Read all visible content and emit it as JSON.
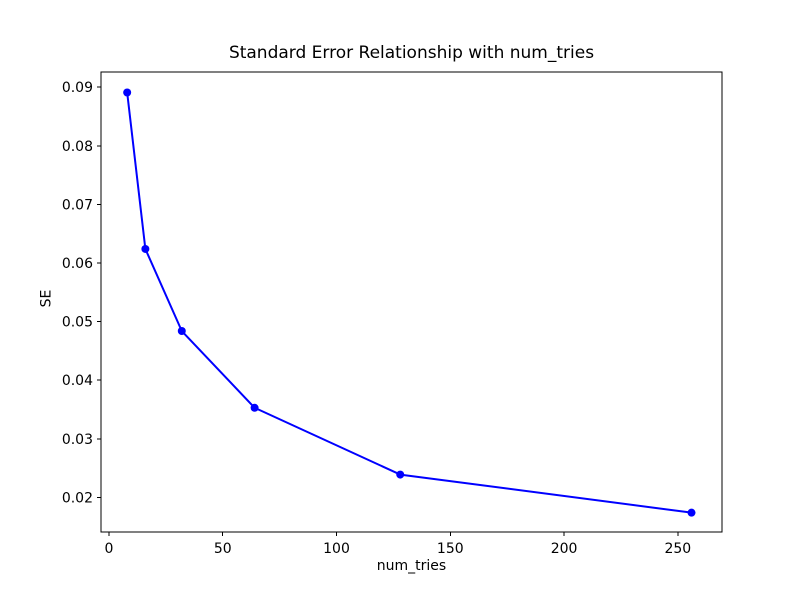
{
  "figure": {
    "background_color": "#ffffff",
    "text_color": "#000000"
  },
  "chart_data": {
    "type": "line",
    "title": "Standard Error Relationship with num_tries",
    "xlabel": "num_tries",
    "ylabel": "SE",
    "x": [
      8,
      16,
      32,
      64,
      128,
      256
    ],
    "y": [
      0.0891,
      0.0624,
      0.0484,
      0.0353,
      0.0239,
      0.0174
    ],
    "series": [
      {
        "name": "SE",
        "x": [
          8,
          16,
          32,
          64,
          128,
          256
        ],
        "y": [
          0.0891,
          0.0624,
          0.0484,
          0.0353,
          0.0239,
          0.0174
        ]
      }
    ],
    "line_color": "#0000ff",
    "marker": "circle",
    "marker_color": "#0000ff",
    "xlim": [
      -3.5,
      269.4
    ],
    "ylim": [
      0.0141,
      0.0926
    ],
    "xticks": [
      0,
      50,
      100,
      150,
      200,
      250
    ],
    "xtick_labels": [
      "0",
      "50",
      "100",
      "150",
      "200",
      "250"
    ],
    "yticks": [
      0.02,
      0.03,
      0.04,
      0.05,
      0.06,
      0.07,
      0.08,
      0.09
    ],
    "ytick_labels": [
      "0.02",
      "0.03",
      "0.04",
      "0.05",
      "0.06",
      "0.07",
      "0.08",
      "0.09"
    ],
    "grid": false,
    "legend": null
  }
}
